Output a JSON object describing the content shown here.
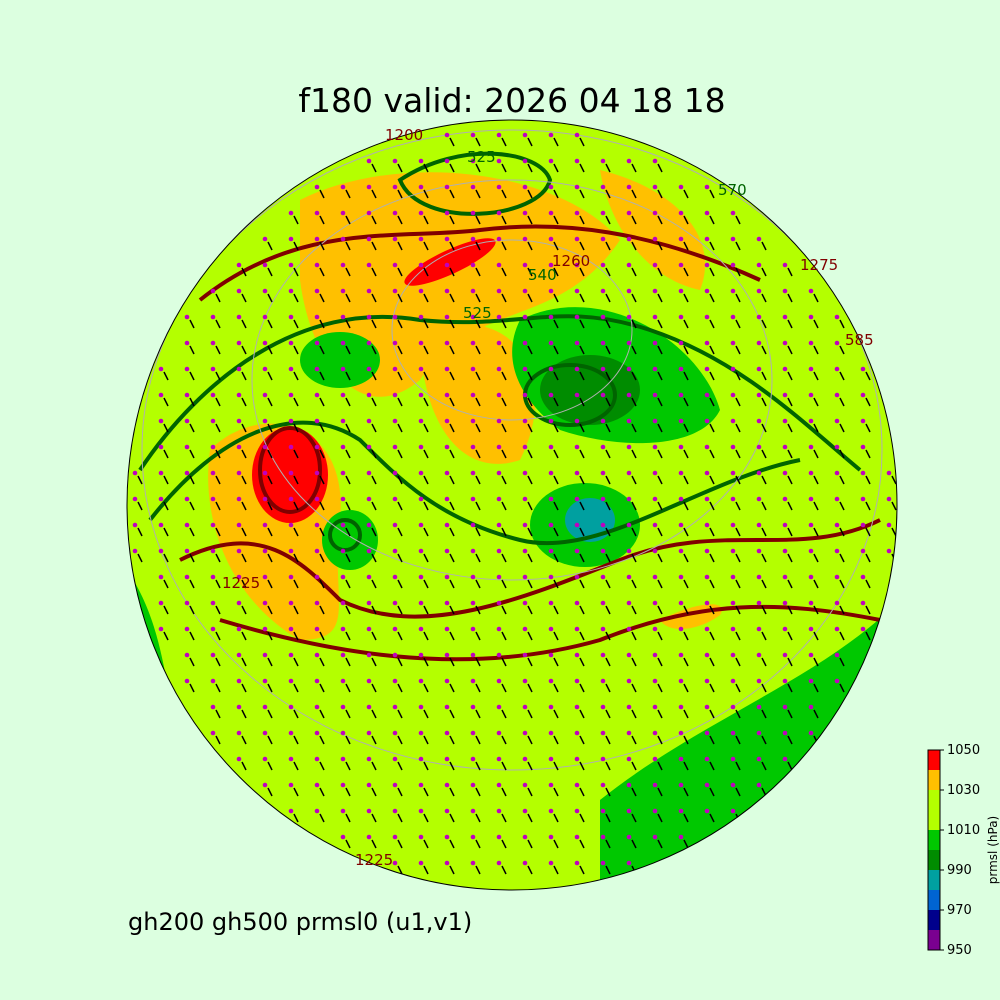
{
  "title": "f180 valid:   2026 04 18 18",
  "subtitle": "gh200 gh500 prmsl0 (u1,v1)",
  "colorbar": {
    "label": "prmsl (hPa)",
    "bounds": [
      950,
      960,
      970,
      980,
      990,
      1000,
      1010,
      1020,
      1030,
      1040,
      1050
    ],
    "colors": [
      "#7a0090",
      "#00008c",
      "#0064d2",
      "#00a0a0",
      "#008c00",
      "#00c800",
      "#b4ff00",
      "#b4ff00",
      "#ffc000",
      "#ff0000"
    ],
    "ticks": [
      950,
      970,
      990,
      1010,
      1030,
      1050
    ]
  },
  "contour_labels": [
    "1200",
    "525",
    "540",
    "1260",
    "525",
    "1225",
    "570",
    "1275",
    "585",
    "1225"
  ]
}
